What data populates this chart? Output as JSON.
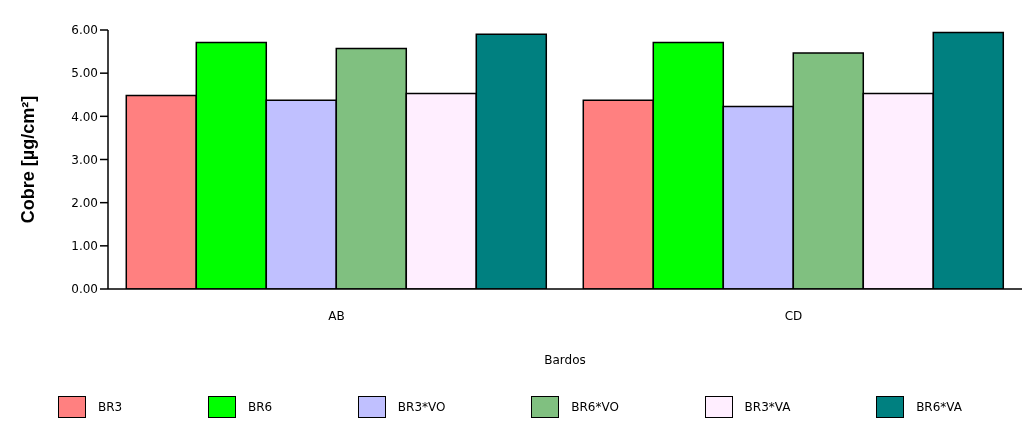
{
  "chart_data": {
    "type": "bar",
    "xlabel": "Bardos",
    "ylabel": "Cobre [µg/cm²]",
    "categories": [
      "AB",
      "CD"
    ],
    "series": [
      {
        "name": "BR3",
        "color": "#ff8080",
        "values": [
          4.48,
          4.37
        ]
      },
      {
        "name": "BR6",
        "color": "#00ff00",
        "values": [
          5.71,
          5.71
        ]
      },
      {
        "name": "BR3*VO",
        "color": "#c0c0ff",
        "values": [
          4.37,
          4.23
        ]
      },
      {
        "name": "BR6*VO",
        "color": "#80c080",
        "values": [
          5.57,
          5.47
        ]
      },
      {
        "name": "BR3*VA",
        "color": "#ffeeff",
        "values": [
          4.53,
          4.53
        ]
      },
      {
        "name": "BR6*VA",
        "color": "#008080",
        "values": [
          5.9,
          5.94
        ]
      }
    ],
    "ylim": [
      0,
      6
    ],
    "yticks": [
      {
        "value": 0,
        "label": "0.00"
      },
      {
        "value": 1,
        "label": "1.00"
      },
      {
        "value": 2,
        "label": "2.00"
      },
      {
        "value": 3,
        "label": "3.00"
      },
      {
        "value": 4,
        "label": "4.00"
      },
      {
        "value": 5,
        "label": "5.00"
      },
      {
        "value": 6,
        "label": "6.00"
      }
    ],
    "grid": false,
    "legend": "bottom"
  }
}
